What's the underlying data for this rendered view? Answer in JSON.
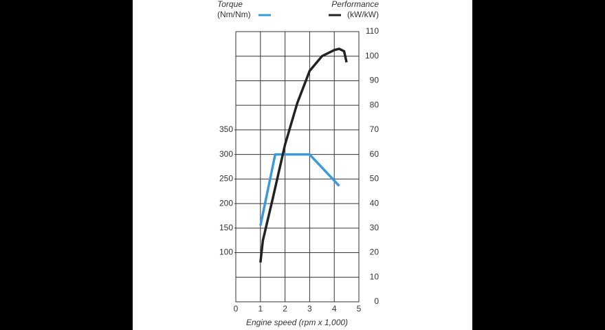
{
  "chart_data": {
    "type": "line",
    "x_label": "Engine speed (rpm x 1,000)",
    "xlim": [
      0,
      5
    ],
    "xticks": [
      0,
      1,
      2,
      3,
      4,
      5
    ],
    "ylim": [
      0,
      550
    ],
    "yticks": [
      100,
      150,
      200,
      250,
      300,
      350
    ],
    "y2lim": [
      0,
      110
    ],
    "y2ticks": [
      0,
      10,
      20,
      30,
      40,
      50,
      60,
      70,
      80,
      90,
      100,
      110
    ],
    "grid": true,
    "series": [
      {
        "name": "Torque",
        "unit": "(Nm/Nm)",
        "color": "#3a9ad9",
        "x": [
          1.0,
          1.6,
          3.0,
          4.2
        ],
        "values": [
          155,
          300,
          300,
          236
        ]
      },
      {
        "name": "Performance",
        "unit": "(kW/kW)",
        "color": "#222222",
        "axis": "y2",
        "x": [
          1.0,
          1.1,
          1.5,
          2.0,
          2.5,
          3.0,
          3.5,
          4.0,
          4.2,
          4.4,
          4.5
        ],
        "values": [
          16,
          25,
          42,
          64,
          81,
          94,
          100,
          102.5,
          103,
          102,
          97.5
        ]
      }
    ]
  }
}
